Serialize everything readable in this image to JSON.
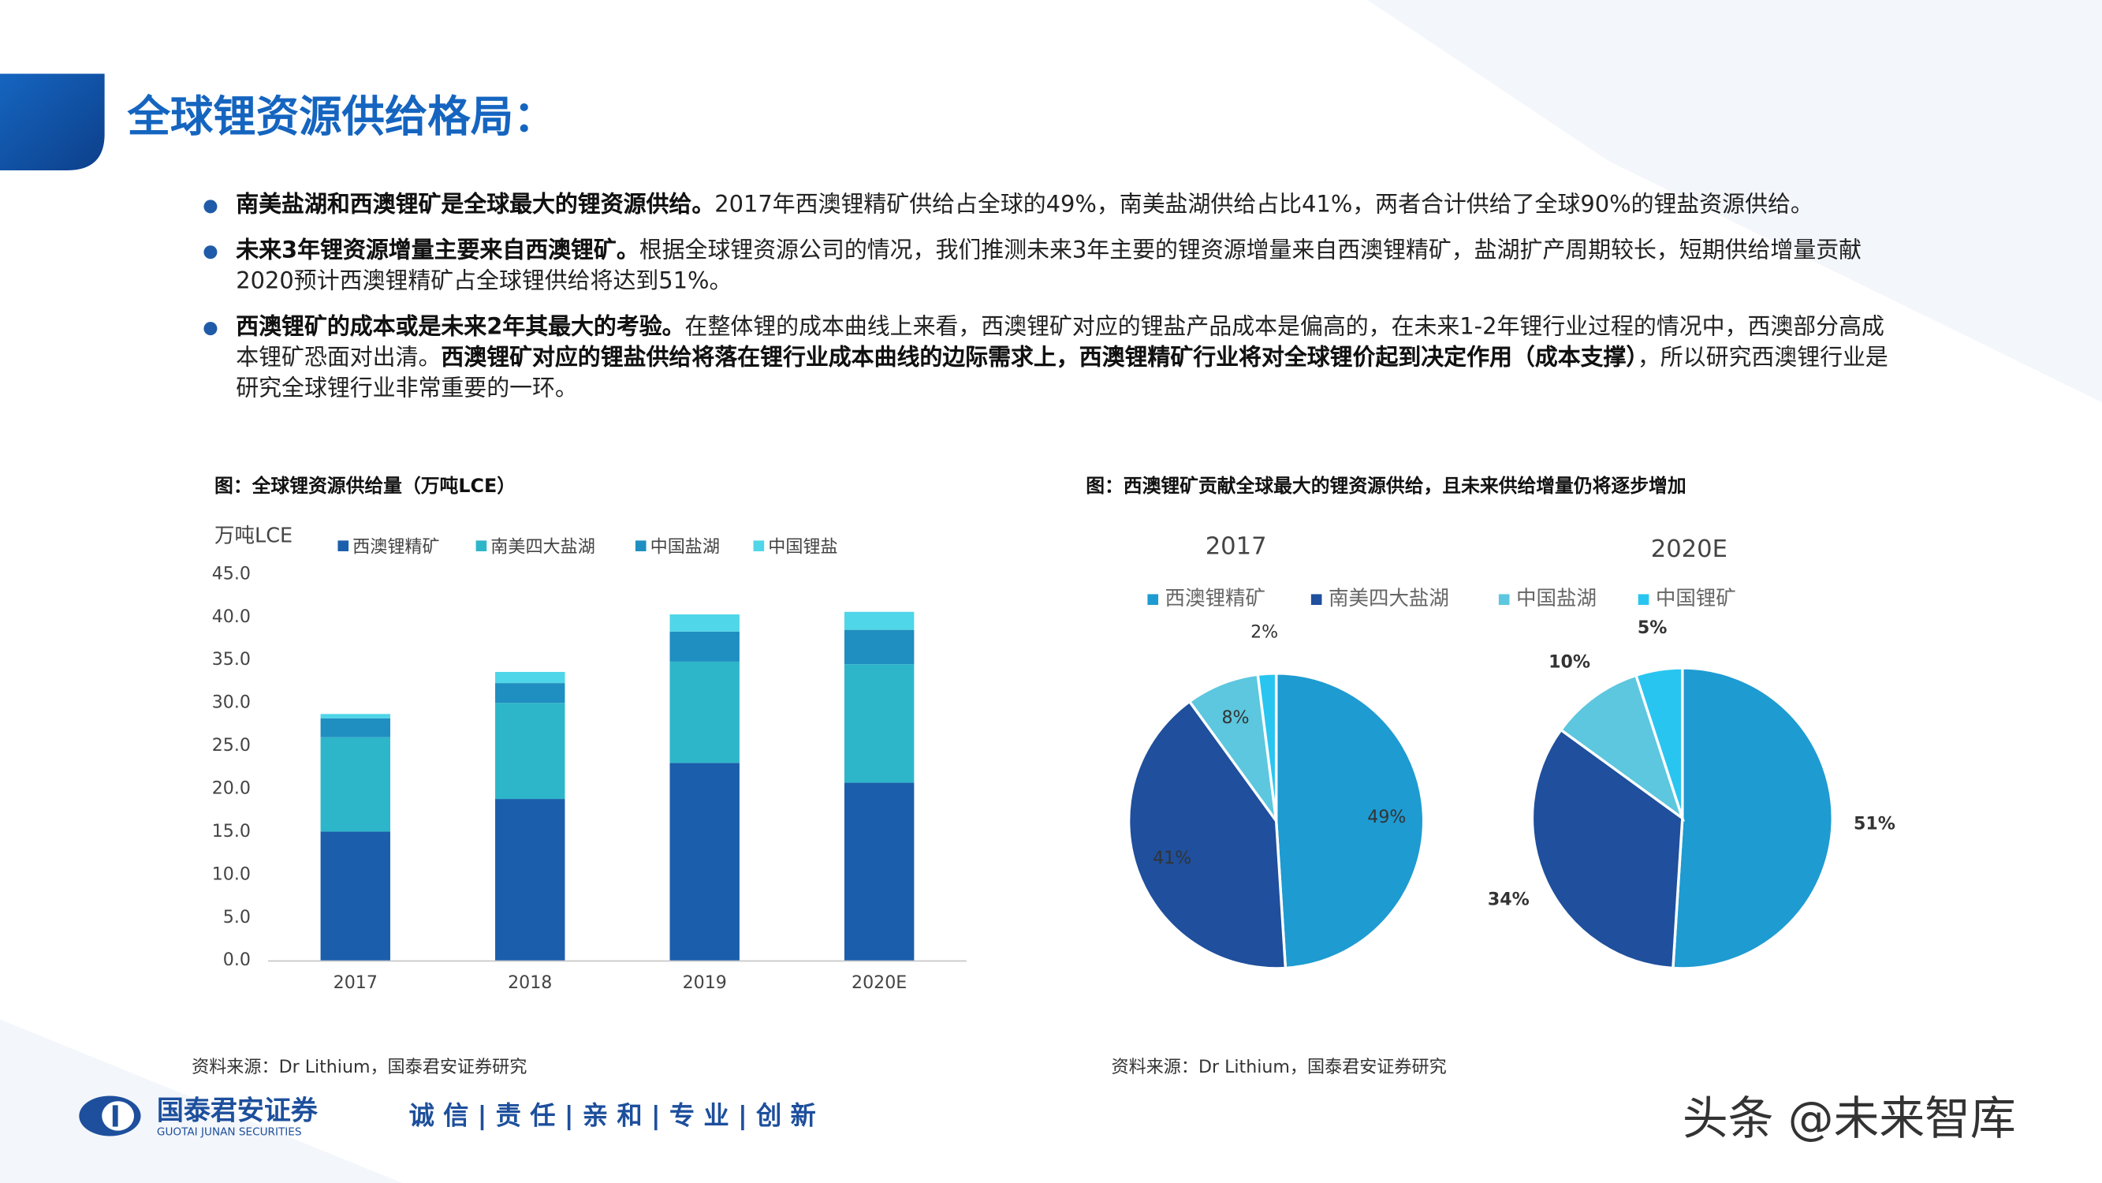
{
  "header": {
    "title": "全球锂资源供给格局："
  },
  "bullets": [
    [
      {
        "text": "南美盐湖和西澳锂矿是全球最大的锂资源供给。",
        "bold": true
      },
      {
        "text": "2017年西澳锂精矿供给占全球的49%，南美盐湖供给占比41%，两者合计供给了全球90%的锂盐资源供给。",
        "bold": false
      }
    ],
    [
      {
        "text": "未来3年锂资源增量主要来自西澳锂矿。",
        "bold": true
      },
      {
        "text": "根据全球锂资源公司的情况，我们推测未来3年主要的锂资源增量来自西澳锂精矿，盐湖扩产周期较长，短期供给增量贡献2020预计西澳锂精矿占全球锂供给将达到51%。",
        "bold": false
      }
    ],
    [
      {
        "text": "西澳锂矿的成本或是未来2年其最大的考验。",
        "bold": true
      },
      {
        "text": "在整体锂的成本曲线上来看，西澳锂矿对应的锂盐产品成本是偏高的，在未来1-2年锂行业过程的情况中，西澳部分高成本锂矿恐面对出清。",
        "bold": false
      },
      {
        "text": "西澳锂矿对应的锂盐供给将落在锂行业成本曲线的边际需求上，西澳锂精矿行业将对全球锂价起到决定作用（成本支撑）",
        "bold": true
      },
      {
        "text": "，所以研究西澳锂行业是研究全球锂行业非常重要的一环。",
        "bold": false
      }
    ]
  ],
  "chart_data": [
    {
      "type": "bar",
      "stacked": true,
      "title": "图：全球锂资源供给量（万吨LCE）",
      "y_label": "万吨LCE",
      "categories": [
        "2017",
        "2018",
        "2019",
        "2020E"
      ],
      "series": [
        {
          "name": "西澳锂精矿",
          "color": "#1b5eab",
          "values": [
            15.0,
            18.8,
            23.0,
            20.7
          ]
        },
        {
          "name": "南美四大盐湖",
          "color": "#2db6c9",
          "values": [
            11.0,
            11.2,
            11.8,
            13.8
          ]
        },
        {
          "name": "中国盐湖",
          "color": "#1f8ec0",
          "values": [
            2.2,
            2.3,
            3.5,
            4.0
          ]
        },
        {
          "name": "中国锂盐",
          "color": "#4fd6e8",
          "values": [
            0.5,
            1.3,
            2.0,
            2.1
          ]
        }
      ],
      "ylim": [
        0,
        45
      ],
      "yticks": [
        {
          "value": 0,
          "label": "0.0"
        },
        {
          "value": 5,
          "label": "5.0"
        },
        {
          "value": 10,
          "label": "10.0"
        },
        {
          "value": 15,
          "label": "15.0"
        },
        {
          "value": 20,
          "label": "20.0"
        },
        {
          "value": 25,
          "label": "25.0"
        },
        {
          "value": 30,
          "label": "30.0"
        },
        {
          "value": 35,
          "label": "35.0"
        },
        {
          "value": 40,
          "label": "40.0"
        },
        {
          "value": 45,
          "label": "45.0"
        }
      ],
      "grid": false,
      "source": "资料来源：Dr Lithium，国泰君安证券研究"
    },
    {
      "type": "pie",
      "title": "图：西澳锂矿贡献全球最大的锂资源供给，且未来供给增量仍将逐步增加",
      "categories": [
        "西澳锂精矿",
        "南美四大盐湖",
        "中国盐湖",
        "中国锂矿"
      ],
      "colors": [
        "#1e9bd1",
        "#1f4f9d",
        "#5cc7df",
        "#29c5f1"
      ],
      "pies": [
        {
          "title": "2017",
          "values": [
            49,
            41,
            8,
            2
          ],
          "value_labels": [
            "49%",
            "41%",
            "8%",
            "2%"
          ],
          "label_position": "inside",
          "label_bold": false
        },
        {
          "title": "2020E",
          "values": [
            51,
            34,
            10,
            5
          ],
          "value_labels": [
            "51%",
            "34%",
            "10%",
            "5%"
          ],
          "label_position": "outside",
          "label_bold": true
        }
      ],
      "source": "资料来源：Dr Lithium，国泰君安证券研究"
    }
  ],
  "footer": {
    "company": "国泰君安证券",
    "company_en": "GUOTAI JUNAN SECURITIES",
    "slogan": "诚 信 | 责 任 | 亲 和 | 专 业 | 创 新",
    "watermark": "头条 @未来智库"
  }
}
